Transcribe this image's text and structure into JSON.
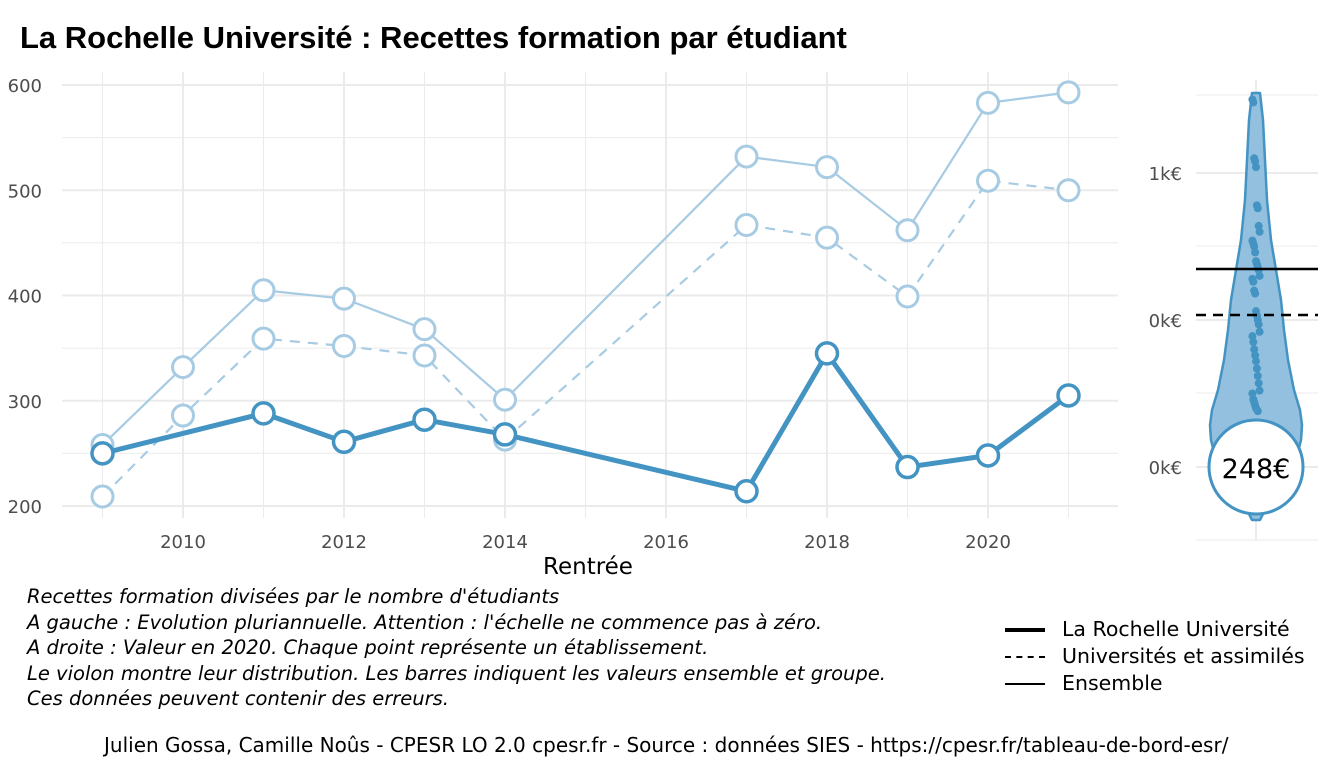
{
  "title": "La Rochelle Université  :  Recettes formation par étudiant",
  "chart_data": [
    {
      "type": "line",
      "xlabel": "Rentrée",
      "ylabel": "",
      "xlim": [
        2008.4,
        2021.6
      ],
      "ylim": [
        190,
        610
      ],
      "x_ticks": [
        "2010",
        "2012",
        "2014",
        "2016",
        "2018",
        "2020"
      ],
      "y_ticks": [
        "200",
        "300",
        "400",
        "500",
        "600"
      ],
      "grid": true,
      "series": [
        {
          "name": "La Rochelle Université",
          "color": "#4393c3",
          "linestyle": "solid-thick",
          "x": [
            2009,
            2011,
            2012,
            2013,
            2014,
            2017,
            2018,
            2019,
            2020,
            2021
          ],
          "values": [
            250,
            288,
            261,
            282,
            268,
            214,
            345,
            237,
            248,
            305
          ]
        },
        {
          "name": "Universités et assimilés",
          "color": "#a6cbe3",
          "linestyle": "dashed",
          "x": [
            2009,
            2010,
            2011,
            2012,
            2013,
            2014,
            2017,
            2018,
            2019,
            2020,
            2021
          ],
          "values": [
            209,
            286,
            359,
            352,
            343,
            263,
            467,
            455,
            399,
            509,
            500
          ]
        },
        {
          "name": "Ensemble",
          "color": "#a6cbe3",
          "linestyle": "solid",
          "x": [
            2009,
            2010,
            2011,
            2012,
            2013,
            2014,
            2017,
            2018,
            2019,
            2020,
            2021
          ],
          "values": [
            258,
            332,
            405,
            397,
            368,
            301,
            532,
            522,
            462,
            583,
            593
          ]
        }
      ]
    },
    {
      "type": "scatter",
      "subtype": "violin",
      "year": "2020",
      "y_ticks": [
        "1k€",
        "0k€",
        "0k€"
      ],
      "ensemble_value": 583,
      "group_value": 509,
      "highlight_label": "248€",
      "highlight_value": 248,
      "color": "#4393c3",
      "points": [
        1500,
        1480,
        1100,
        1080,
        1040,
        780,
        760,
        640,
        600,
        540,
        520,
        500,
        460,
        400,
        380,
        360,
        340,
        300,
        280,
        260,
        200,
        180,
        60,
        30,
        0,
        -30,
        -80,
        -110,
        -150,
        -200,
        -240,
        -280,
        -330,
        -380,
        -430,
        -480,
        -500,
        -540,
        -560,
        -580,
        -600,
        -610,
        -620,
        -960
      ]
    }
  ],
  "notes": [
    "Recettes formation divisées par le nombre d'étudiants",
    "A gauche : Evolution pluriannuelle. Attention : l'échelle ne commence pas à zéro.",
    "A droite : Valeur en 2020. Chaque point représente un établissement.",
    "Le violon montre leur distribution. Les barres indiquent les valeurs ensemble et groupe.",
    "Ces données peuvent contenir des erreurs."
  ],
  "legend": [
    {
      "label": "La Rochelle Université",
      "style": "thick"
    },
    {
      "label": "Universités et assimilés",
      "style": "dashed"
    },
    {
      "label": "Ensemble",
      "style": "thin"
    }
  ],
  "credit": "Julien Gossa, Camille Noûs - CPESR LO 2.0 cpesr.fr - Source : données SIES - https://cpesr.fr/tableau-de-bord-esr/"
}
